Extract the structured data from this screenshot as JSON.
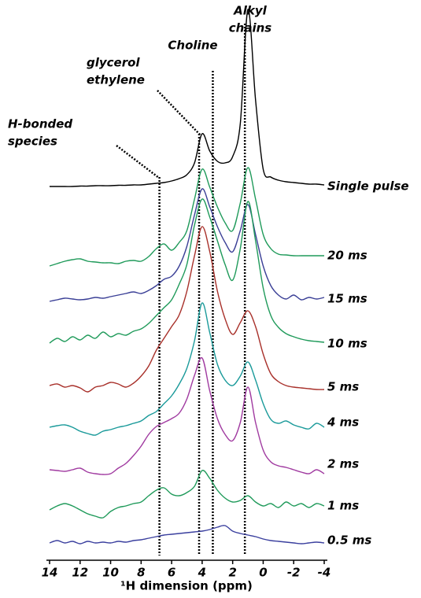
{
  "chart_data": {
    "type": "stacked-spectra",
    "x_label": "¹H dimension (ppm)",
    "xlim": [
      14,
      -4
    ],
    "xticks": [
      14,
      12,
      10,
      8,
      6,
      4,
      2,
      0,
      -2,
      -4
    ],
    "reference_lines": [
      6.8,
      4.2,
      3.3,
      1.2
    ],
    "annotations": [
      {
        "lines": [
          "Alkyl",
          "chains"
        ]
      },
      {
        "lines": [
          "Choline"
        ]
      },
      {
        "lines": [
          "glycerol",
          "ethylene"
        ]
      },
      {
        "lines": [
          "H-bonded",
          "species"
        ]
      }
    ],
    "x": [
      14,
      13.5,
      13,
      12.5,
      12,
      11.5,
      11,
      10.5,
      10,
      9.5,
      9,
      8.5,
      8,
      7.5,
      7,
      6.5,
      6,
      5.5,
      5,
      4.5,
      4,
      3.5,
      3,
      2.5,
      2,
      1.5,
      1,
      0.5,
      0,
      -0.5,
      -1,
      -1.5,
      -2,
      -2.5,
      -3,
      -3.5,
      -4
    ],
    "series": [
      {
        "name": "Single pulse",
        "color": "#000000",
        "values": [
          0,
          0,
          0,
          0,
          0.5,
          0.5,
          1,
          1,
          1,
          1.5,
          1.5,
          2,
          2,
          3,
          4,
          5,
          7,
          10,
          15,
          30,
          67,
          45,
          32,
          30,
          38,
          80,
          225,
          110,
          22,
          12,
          8,
          6,
          5,
          4,
          3,
          3,
          2
        ]
      },
      {
        "name": "20 ms",
        "color": "#1f9a5a",
        "values": [
          0,
          3,
          6,
          8,
          9,
          6,
          5,
          4,
          4,
          3,
          6,
          7,
          6,
          12,
          22,
          28,
          20,
          30,
          45,
          85,
          123,
          100,
          75,
          55,
          45,
          80,
          125,
          85,
          40,
          22,
          15,
          14,
          13,
          13,
          13,
          13,
          13
        ]
      },
      {
        "name": "15 ms",
        "color": "#3a3f96",
        "values": [
          0,
          2,
          4,
          3,
          2,
          3,
          5,
          4,
          6,
          8,
          10,
          12,
          10,
          14,
          20,
          28,
          32,
          45,
          70,
          110,
          143,
          120,
          95,
          75,
          63,
          90,
          123,
          85,
          45,
          20,
          8,
          3,
          8,
          2,
          5,
          3,
          5
        ]
      },
      {
        "name": "10 ms",
        "color": "#1f9a5a",
        "values": [
          0,
          6,
          2,
          8,
          4,
          10,
          6,
          14,
          8,
          12,
          10,
          15,
          18,
          25,
          35,
          45,
          55,
          75,
          100,
          150,
          183,
          160,
          130,
          100,
          80,
          120,
          180,
          130,
          70,
          35,
          20,
          12,
          8,
          5,
          3,
          2,
          1
        ]
      },
      {
        "name": "5 ms",
        "color": "#a8302a",
        "values": [
          0,
          2,
          -2,
          0,
          -3,
          -8,
          -2,
          0,
          4,
          2,
          -2,
          3,
          12,
          25,
          45,
          60,
          75,
          90,
          120,
          165,
          202,
          170,
          120,
          85,
          65,
          80,
          95,
          75,
          40,
          15,
          5,
          0,
          -2,
          -3,
          -4,
          -5,
          -5
        ]
      },
      {
        "name": "4 ms",
        "color": "#1a9a9a",
        "values": [
          0,
          2,
          3,
          0,
          -5,
          -8,
          -10,
          -5,
          -3,
          0,
          2,
          5,
          8,
          15,
          20,
          30,
          40,
          55,
          75,
          110,
          158,
          120,
          80,
          60,
          53,
          65,
          83,
          60,
          30,
          10,
          5,
          8,
          3,
          0,
          -2,
          5,
          0
        ]
      },
      {
        "name": "2 ms",
        "color": "#a03aa0",
        "values": [
          0,
          -1,
          -2,
          0,
          2,
          -3,
          -5,
          -6,
          -5,
          2,
          8,
          18,
          30,
          45,
          55,
          60,
          65,
          72,
          90,
          120,
          142,
          100,
          65,
          45,
          37,
          60,
          105,
          60,
          25,
          10,
          5,
          3,
          0,
          -3,
          -5,
          0,
          -5
        ]
      },
      {
        "name": "1 ms",
        "color": "#1f9a5a",
        "values": [
          0,
          5,
          8,
          5,
          0,
          -5,
          -8,
          -10,
          -2,
          3,
          5,
          8,
          10,
          18,
          25,
          28,
          20,
          18,
          22,
          30,
          50,
          40,
          25,
          15,
          10,
          12,
          18,
          10,
          5,
          8,
          3,
          10,
          5,
          8,
          3,
          8,
          5
        ]
      },
      {
        "name": "0.5 ms",
        "color": "#3a3f9e",
        "values": [
          0,
          3,
          0,
          2,
          -1,
          2,
          0,
          1,
          0,
          2,
          1,
          3,
          4,
          6,
          8,
          10,
          11,
          12,
          13,
          14,
          15,
          17,
          20,
          22,
          15,
          12,
          10,
          8,
          5,
          3,
          2,
          1,
          0,
          -1,
          0,
          1,
          0
        ]
      }
    ]
  }
}
